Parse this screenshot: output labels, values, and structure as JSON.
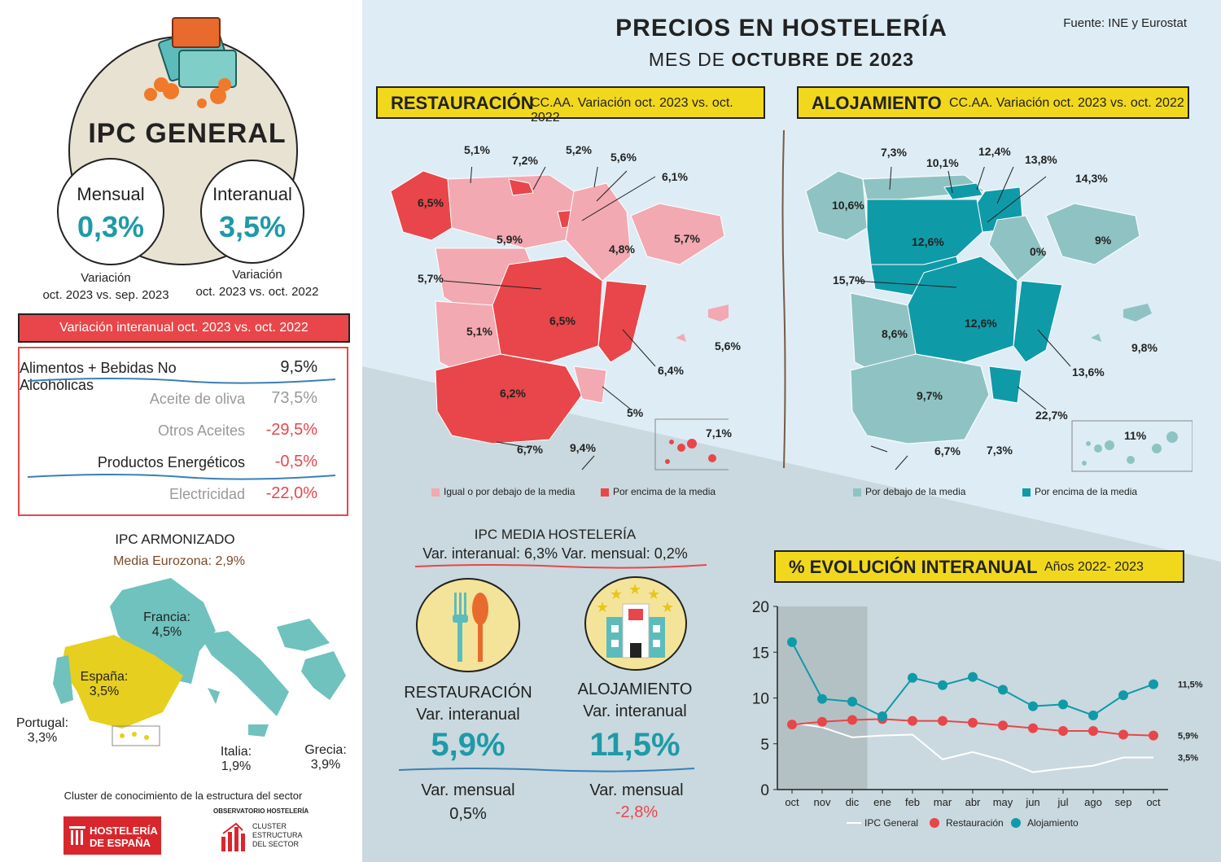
{
  "header": {
    "title": "PRECIOS EN HOSTELERÍA",
    "subtitle_pre": "MES DE",
    "subtitle_bold": "OCTUBRE DE 2023",
    "source": "Fuente: INE y Eurostat"
  },
  "ipc_general": {
    "title": "IPC GENERAL",
    "mensual": {
      "label": "Mensual",
      "value": "0,3%",
      "caption1": "Variación",
      "caption2": "oct. 2023 vs. sep. 2023"
    },
    "interanual": {
      "label": "Interanual",
      "value": "3,5%",
      "caption1": "Variación",
      "caption2": "oct. 2023 vs. oct. 2022"
    }
  },
  "variacion_table": {
    "header": "Variación interanual oct. 2023 vs. oct. 2022",
    "rows": [
      {
        "name": "Alimentos + Bebidas No Alcohólicas",
        "value": "9,5%"
      },
      {
        "name": "Aceite de oliva",
        "value": "73,5%"
      },
      {
        "name": "Otros Aceites",
        "value": "-29,5%"
      },
      {
        "name": "Productos Energéticos",
        "value": "-0,5%"
      },
      {
        "name": "Electricidad",
        "value": "-22,0%"
      }
    ]
  },
  "ipc_armonizado": {
    "title": "IPC ARMONIZADO",
    "subtitle": "Media Eurozona: 2,9%",
    "countries": [
      {
        "name": "Francia:",
        "value": "4,5%"
      },
      {
        "name": "España:",
        "value": "3,5%"
      },
      {
        "name": "Portugal:",
        "value": "3,3%"
      },
      {
        "name": "Italia:",
        "value": "1,9%"
      },
      {
        "name": "Grecia:",
        "value": "3,9%"
      }
    ]
  },
  "footer": {
    "cluster": "Cluster de conocimiento de la estructura del sector",
    "logo1_line1": "HOSTELERÍA",
    "logo1_line2": "DE ESPAÑA",
    "obs": "OBSERVATORIO HOSTELERÍA",
    "logo2_line1": "CLUSTER",
    "logo2_line2": "ESTRUCTURA",
    "logo2_line3": "DEL SECTOR"
  },
  "restauracion_map": {
    "title": "RESTAURACIÓN",
    "subtitle": "CC.AA. Variación oct. 2023 vs. oct. 2022",
    "labels": [
      "5,1%",
      "7,2%",
      "5,2%",
      "5,6%",
      "6,1%",
      "6,5%",
      "5,9%",
      "4,8%",
      "5,7%",
      "5,7%",
      "6,5%",
      "5,1%",
      "5,6%",
      "6,4%",
      "6,2%",
      "5%",
      "7,1%",
      "6,7%",
      "9,4%"
    ],
    "legend_below": "Igual o por debajo de la media",
    "legend_above": "Por encima de la media",
    "color_below": "#f2a9b2",
    "color_above": "#e8464a"
  },
  "alojamiento_map": {
    "title": "ALOJAMIENTO",
    "subtitle": "CC.AA. Variación oct. 2023 vs. oct. 2022",
    "labels": [
      "7,3%",
      "10,1%",
      "12,4%",
      "13,8%",
      "14,3%",
      "10,6%",
      "12,6%",
      "0%",
      "9%",
      "15,7%",
      "12,6%",
      "8,6%",
      "9,8%",
      "13,6%",
      "9,7%",
      "22,7%",
      "11%",
      "6,7%",
      "7,3%"
    ],
    "legend_below": "Por debajo de la media",
    "legend_above": "Por encima de la media",
    "color_below": "#8fc3c3",
    "color_above": "#0f9aa8"
  },
  "ipc_media": {
    "title": "IPC MEDIA HOSTELERÍA",
    "subtitle": "Var. interanual: 6,3%  Var. mensual: 0,2%",
    "restauracion": {
      "name": "RESTAURACIÓN",
      "label": "Var. interanual",
      "value": "5,9%",
      "mensual_label": "Var. mensual",
      "mensual_value": "0,5%"
    },
    "alojamiento": {
      "name": "ALOJAMIENTO",
      "label": "Var. interanual",
      "value": "11,5%",
      "mensual_label": "Var. mensual",
      "mensual_value": "-2,8%"
    }
  },
  "chart_data": {
    "type": "line",
    "title": "% EVOLUCIÓN INTERANUAL",
    "subtitle": "Años 2022- 2023",
    "categories": [
      "oct",
      "nov",
      "dic",
      "ene",
      "feb",
      "mar",
      "abr",
      "may",
      "jun",
      "jul",
      "ago",
      "sep",
      "oct"
    ],
    "yticks": [
      "0",
      "5",
      "10",
      "15",
      "20"
    ],
    "ylim": [
      0,
      20
    ],
    "series": [
      {
        "name": "IPC General",
        "color": "#ffffff",
        "values": [
          7.3,
          6.8,
          5.7,
          5.9,
          6.0,
          3.3,
          4.1,
          3.2,
          1.9,
          2.3,
          2.6,
          3.5,
          3.5
        ],
        "end_label": "3,5%"
      },
      {
        "name": "Restauración",
        "color": "#e8464a",
        "values": [
          7.1,
          7.4,
          7.6,
          7.7,
          7.5,
          7.5,
          7.3,
          7.0,
          6.7,
          6.4,
          6.4,
          6.0,
          5.9
        ],
        "end_label": "5,9%"
      },
      {
        "name": "Alojamiento",
        "color": "#0f9aa8",
        "values": [
          16.1,
          9.9,
          9.6,
          8.0,
          12.2,
          11.4,
          12.3,
          10.9,
          9.1,
          9.3,
          8.1,
          10.3,
          11.5
        ],
        "end_label": "11,5%"
      }
    ],
    "shaded": "2022",
    "legend": "bottom"
  }
}
